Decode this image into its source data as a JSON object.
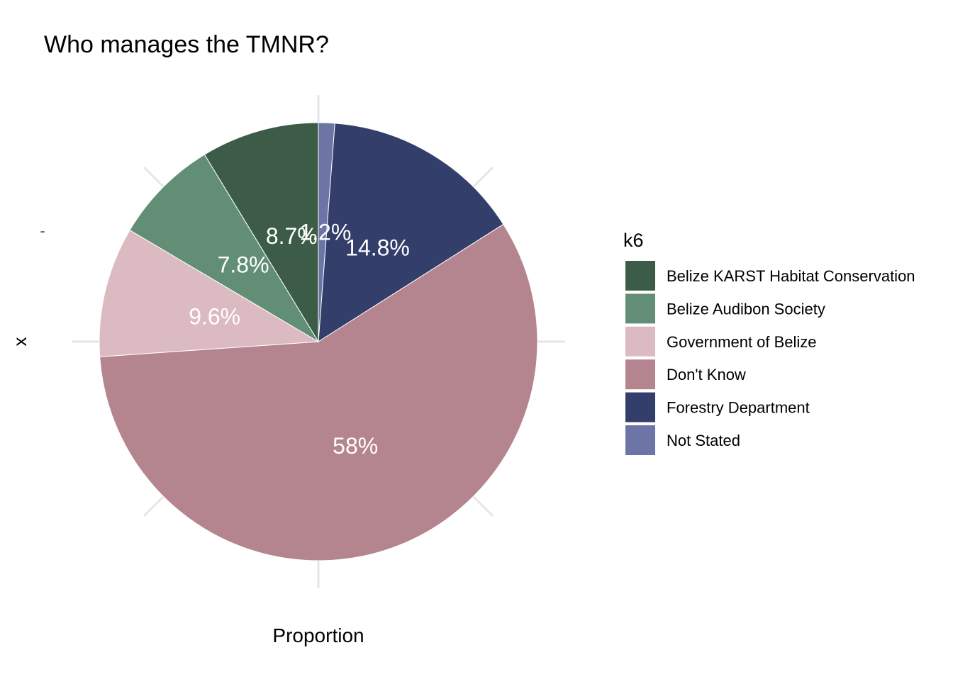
{
  "chart_data": {
    "type": "pie",
    "title": "Who manages the TMNR?",
    "xlabel": "Proportion",
    "ylabel": "x",
    "y_tick_label": "-",
    "legend": {
      "title": "k6",
      "position": "right"
    },
    "start_angle_deg": 0,
    "direction": "clockwise",
    "grid": true,
    "slices": [
      {
        "label": "Not Stated",
        "value": 1.2,
        "data_label": "1.2%",
        "color": "#6d75a6"
      },
      {
        "label": "Forestry Department",
        "value": 14.8,
        "data_label": "14.8%",
        "color": "#343e6b"
      },
      {
        "label": "Don't Know",
        "value": 57.9,
        "data_label": "58%",
        "color": "#b5858f"
      },
      {
        "label": "Government of Belize",
        "value": 9.6,
        "data_label": "9.6%",
        "color": "#dcbac1"
      },
      {
        "label": "Belize Audibon Society",
        "value": 7.8,
        "data_label": "7.8%",
        "color": "#628e76"
      },
      {
        "label": "Belize KARST Habitat Conservation",
        "value": 8.7,
        "data_label": "8.7%",
        "color": "#3d5c47"
      }
    ],
    "legend_order": [
      "Belize KARST Habitat Conservation",
      "Belize Audibon Society",
      "Government of Belize",
      "Don't Know",
      "Forestry Department",
      "Not Stated"
    ]
  }
}
